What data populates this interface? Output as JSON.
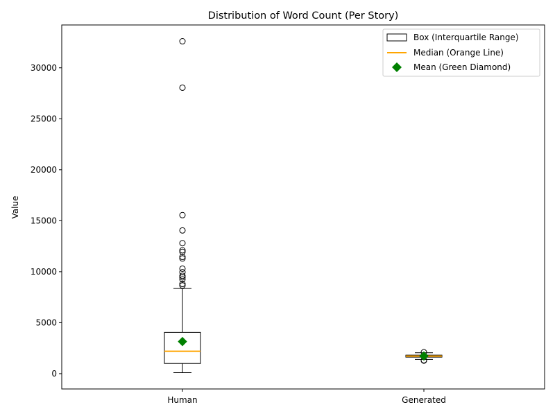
{
  "chart_data": {
    "type": "boxplot",
    "title": "Distribution of Word Count (Per Story)",
    "xlabel": "",
    "ylabel": "Value",
    "ylim": [
      -1500,
      34200
    ],
    "yticks": [
      0,
      5000,
      10000,
      15000,
      20000,
      25000,
      30000
    ],
    "ytick_labels": [
      "0",
      "5000",
      "10000",
      "15000",
      "20000",
      "25000",
      "30000"
    ],
    "categories": [
      "Human",
      "Generated"
    ],
    "legend": {
      "placement": "top-right",
      "entries": [
        "Box (Interquartile Range)",
        "Median (Orange Line)",
        "Mean (Green Diamond)"
      ]
    },
    "colors": {
      "box": "#000000",
      "median": "#ffa500",
      "mean": "#008000",
      "outlier": "#000000"
    },
    "boxes": [
      {
        "category": "Human",
        "whislo": 100,
        "q1": 1000,
        "median": 2200,
        "q3": 4050,
        "whishi": 8350,
        "mean": 3150,
        "fliers": [
          32600,
          28050,
          15550,
          14050,
          12800,
          12100,
          11950,
          11450,
          11300,
          10300,
          9950,
          9600,
          9450,
          9250,
          8800,
          8650
        ]
      },
      {
        "category": "Generated",
        "whislo": 1400,
        "q1": 1620,
        "median": 1720,
        "q3": 1820,
        "whishi": 2050,
        "mean": 1730,
        "fliers": [
          1320,
          1280,
          2100
        ]
      }
    ]
  }
}
